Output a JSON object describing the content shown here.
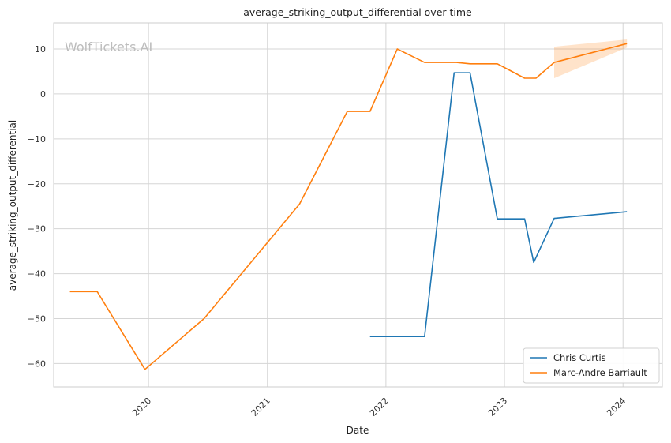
{
  "chart_data": {
    "type": "line",
    "title": "average_striking_output_differential over time",
    "xlabel": "Date",
    "ylabel": "average_striking_output_differential",
    "watermark": "WolfTickets.AI",
    "x_ticks": [
      "2020",
      "2021",
      "2022",
      "2023",
      "2024"
    ],
    "y_ticks": [
      -60,
      -50,
      -40,
      -30,
      -20,
      -10,
      0,
      10
    ],
    "xlim": [
      "2019-03-15",
      "2024-05-01"
    ],
    "ylim": [
      -65.2,
      15.8
    ],
    "grid": true,
    "legend_position": "bottom-right",
    "series": [
      {
        "name": "Chris Curtis",
        "color": "#1f77b4",
        "points": [
          [
            "2021-11-13",
            -54
          ],
          [
            "2022-04-30",
            -54
          ],
          [
            "2022-07-30",
            4.7
          ],
          [
            "2022-09-17",
            4.7
          ],
          [
            "2022-12-10",
            -27.8
          ],
          [
            "2023-03-04",
            -27.8
          ],
          [
            "2023-04-01",
            -37.5
          ],
          [
            "2023-06-03",
            -27.7
          ],
          [
            "2024-01-13",
            -26.2
          ]
        ]
      },
      {
        "name": "Marc-Andre Barriault",
        "color": "#ff7f0e",
        "points": [
          [
            "2019-05-04",
            -44
          ],
          [
            "2019-07-27",
            -44
          ],
          [
            "2019-12-21",
            -61.3
          ],
          [
            "2020-06-20",
            -50
          ],
          [
            "2021-04-10",
            -24.5
          ],
          [
            "2021-09-04",
            -3.9
          ],
          [
            "2021-11-13",
            -3.9
          ],
          [
            "2022-02-05",
            10
          ],
          [
            "2022-04-30",
            7
          ],
          [
            "2022-08-06",
            7
          ],
          [
            "2022-09-17",
            6.7
          ],
          [
            "2022-12-10",
            6.7
          ],
          [
            "2023-03-04",
            3.5
          ],
          [
            "2023-04-08",
            3.5
          ],
          [
            "2023-06-03",
            7
          ],
          [
            "2024-01-13",
            11.2
          ]
        ],
        "confidence_band": [
          [
            "2023-06-03",
            3.5,
            10.5
          ],
          [
            "2024-01-13",
            10.3,
            12.1
          ]
        ]
      }
    ]
  }
}
